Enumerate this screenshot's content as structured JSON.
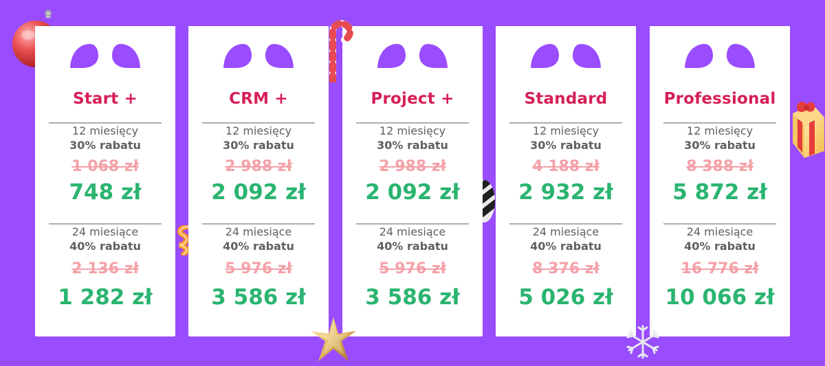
{
  "cards": [
    {
      "name": "Start +",
      "offers": [
        {
          "term": "12 miesięcy",
          "discount": "30% rabatu",
          "old_price": "1 068 zł",
          "new_price": "748 zł"
        },
        {
          "term": "24 miesiące",
          "discount": "40% rabatu",
          "old_price": "2 136 zł",
          "new_price": "1 282 zł"
        }
      ]
    },
    {
      "name": "CRM +",
      "offers": [
        {
          "term": "12 miesięcy",
          "discount": "30% rabatu",
          "old_price": "2 988 zł",
          "new_price": "2 092 zł"
        },
        {
          "term": "24 miesiące",
          "discount": "40% rabatu",
          "old_price": "5 976 zł",
          "new_price": "3 586 zł"
        }
      ]
    },
    {
      "name": "Project +",
      "offers": [
        {
          "term": "12 miesięcy",
          "discount": "30% rabatu",
          "old_price": "2 988 zł",
          "new_price": "2 092 zł"
        },
        {
          "term": "24 miesiące",
          "discount": "40% rabatu",
          "old_price": "5 976 zł",
          "new_price": "3 586 zł"
        }
      ]
    },
    {
      "name": "Standard",
      "offers": [
        {
          "term": "12 miesięcy",
          "discount": "30% rabatu",
          "old_price": "4 188 zł",
          "new_price": "2 932 zł"
        },
        {
          "term": "24 miesiące",
          "discount": "40% rabatu",
          "old_price": "8 376 zł",
          "new_price": "5 026 zł"
        }
      ]
    },
    {
      "name": "Professional",
      "offers": [
        {
          "term": "12 miesięcy",
          "discount": "30% rabatu",
          "old_price": "8 388 zł",
          "new_price": "5 872 zł"
        },
        {
          "term": "24 miesiące",
          "discount": "40% rabatu",
          "old_price": "16 776 zł",
          "new_price": "10 066 zł"
        }
      ]
    }
  ],
  "icons": {
    "bow": "gift-bow-icon",
    "ornament": "christmas-ornament-icon",
    "candy": "candy-cane-icon",
    "swirl": "orange-ribbon-icon",
    "stripe_ball": "striped-ornament-icon",
    "star": "gold-star-icon",
    "snowflake": "snowflake-icon",
    "gift": "gift-box-icon"
  },
  "colors": {
    "background": "#9a4cff",
    "card": "#ffffff",
    "plan_name": "#d61f57",
    "text": "#5f5f5f",
    "old_price": "#f4a1a8",
    "new_price": "#2ab470",
    "divider": "#adadad"
  }
}
